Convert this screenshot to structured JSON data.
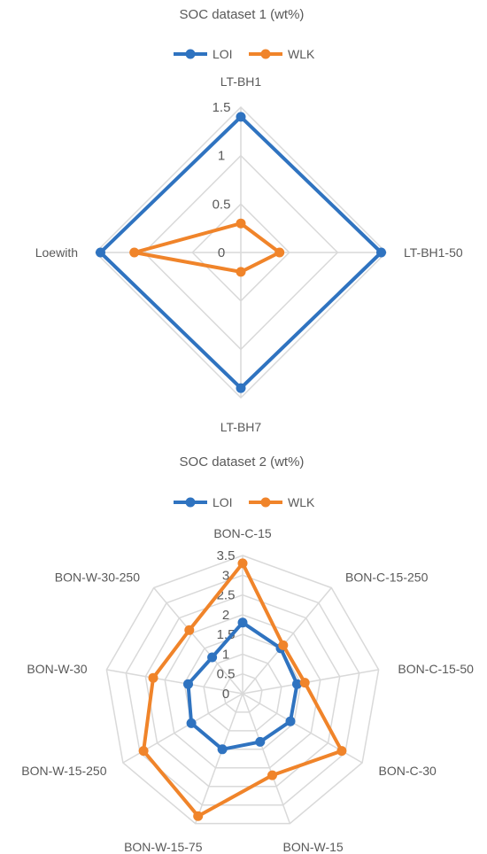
{
  "colors": {
    "LOI": "#2f73c0",
    "WLK": "#f0842a",
    "grid": "#d9d9d9",
    "text": "#595959"
  },
  "chart_data": [
    {
      "type": "radar",
      "title": "SOC dataset 1 (wt%)",
      "legend_position": "top",
      "categories": [
        "LT-BH1",
        "LT-BH1-50",
        "LT-BH7",
        "Loewith"
      ],
      "rmax": 1.5,
      "ticks": [
        "0",
        "0.5",
        "1",
        "1.5"
      ],
      "tick_values": [
        0,
        0.5,
        1,
        1.5
      ],
      "series": [
        {
          "name": "LOI",
          "values": [
            1.4,
            1.45,
            1.4,
            1.45
          ]
        },
        {
          "name": "WLK",
          "values": [
            0.3,
            0.4,
            0.2,
            1.1
          ]
        }
      ]
    },
    {
      "type": "radar",
      "title": "SOC dataset 2 (wt%)",
      "legend_position": "top",
      "categories": [
        "BON-C-15",
        "BON-C-15-250",
        "BON-C-15-50",
        "BON-C-30",
        "BON-W-15",
        "BON-W-15-75",
        "BON-W-15-250",
        "BON-W-30",
        "BON-W-30-250"
      ],
      "rmax": 3.5,
      "ticks": [
        "0",
        "0.5",
        "1",
        "1.5",
        "2",
        "2.5",
        "3",
        "3.5"
      ],
      "tick_values": [
        0,
        0.5,
        1,
        1.5,
        2,
        2.5,
        3,
        3.5
      ],
      "series": [
        {
          "name": "LOI",
          "values": [
            1.8,
            1.5,
            1.4,
            1.4,
            1.3,
            1.5,
            1.5,
            1.4,
            1.2
          ]
        },
        {
          "name": "WLK",
          "values": [
            3.3,
            1.6,
            1.6,
            2.9,
            2.2,
            3.3,
            2.9,
            2.3,
            2.1
          ]
        }
      ]
    }
  ]
}
